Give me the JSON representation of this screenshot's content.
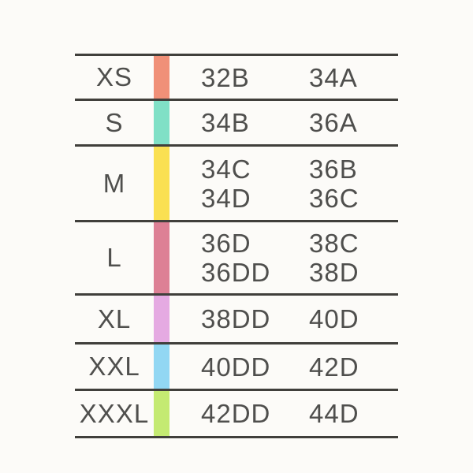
{
  "page": {
    "background_color": "#fcfbf8",
    "line_color": "#403f3b",
    "text_color": "#4f4f4d"
  },
  "chart_data": {
    "type": "table",
    "title": "",
    "columns": [
      "size",
      "bra_sizes_column_1",
      "bra_sizes_column_2"
    ],
    "rows": [
      {
        "size": "XS",
        "strip_color": "#f09078",
        "col1": [
          "32B"
        ],
        "col2": [
          "34A"
        ]
      },
      {
        "size": "S",
        "strip_color": "#80e0c6",
        "col1": [
          "34B"
        ],
        "col2": [
          "36A"
        ]
      },
      {
        "size": "M",
        "strip_color": "#fae052",
        "col1": [
          "34C",
          "34D"
        ],
        "col2": [
          "36B",
          "36C"
        ]
      },
      {
        "size": "L",
        "strip_color": "#dd8095",
        "col1": [
          "36D",
          "36DD"
        ],
        "col2": [
          "38C",
          "38D"
        ]
      },
      {
        "size": "XL",
        "strip_color": "#e5aae2",
        "col1": [
          "38DD"
        ],
        "col2": [
          "40D"
        ]
      },
      {
        "size": "XXL",
        "strip_color": "#92d7f3",
        "col1": [
          "40DD"
        ],
        "col2": [
          "42D"
        ]
      },
      {
        "size": "XXXL",
        "strip_color": "#c4ea72",
        "col1": [
          "42DD"
        ],
        "col2": [
          "44D"
        ]
      }
    ]
  }
}
